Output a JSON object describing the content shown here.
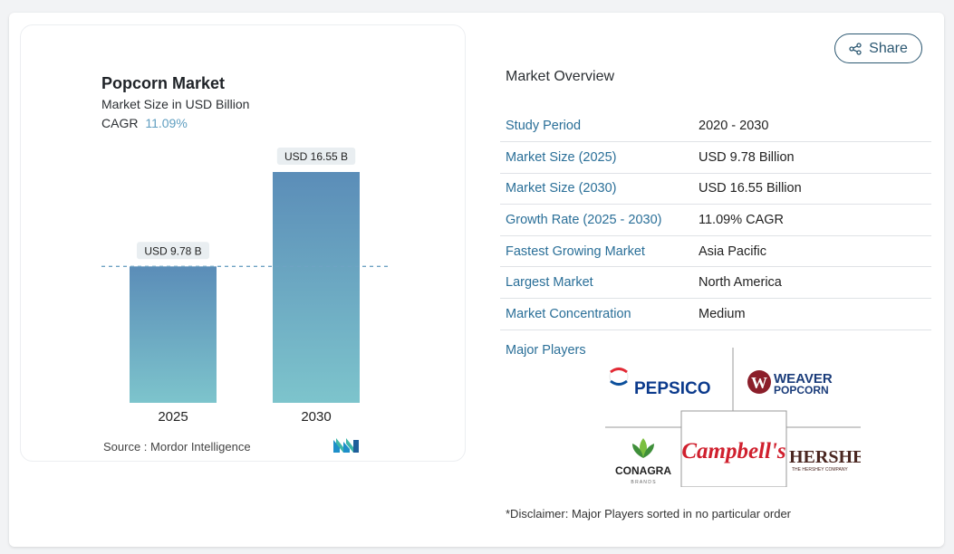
{
  "share": {
    "label": "Share",
    "icon": "share-icon"
  },
  "chart": {
    "title": "Popcorn Market",
    "subtitle": "Market Size in USD Billion",
    "cagr_label": "CAGR",
    "cagr_value": "11.09%",
    "source": "Source :  Mordor Intelligence",
    "logo": "MN"
  },
  "chart_data": {
    "type": "bar",
    "categories": [
      "2025",
      "2030"
    ],
    "values": [
      9.78,
      16.55
    ],
    "data_labels": [
      "USD 9.78 B",
      "USD 16.55 B"
    ],
    "title": "Popcorn Market",
    "subtitle": "Market Size in USD Billion",
    "xlabel": "",
    "ylabel": "",
    "ylim": [
      0,
      16.55
    ],
    "reference_line": 9.78,
    "colors": {
      "bar_top": "#5b8db8",
      "bar_bottom": "#7dc4cc",
      "ref_line": "#6fa3c4"
    }
  },
  "overview": {
    "title": "Market Overview",
    "rows": [
      {
        "key": "Study Period",
        "value": "2020 - 2030"
      },
      {
        "key": "Market Size (2025)",
        "value": "USD 9.78 Billion"
      },
      {
        "key": "Market Size (2030)",
        "value": "USD 16.55 Billion"
      },
      {
        "key": "Growth Rate (2025 - 2030)",
        "value": "11.09% CAGR"
      },
      {
        "key": "Fastest Growing Market",
        "value": "Asia Pacific"
      },
      {
        "key": "Largest Market",
        "value": "North America"
      },
      {
        "key": "Market Concentration",
        "value": "Medium"
      }
    ]
  },
  "players": {
    "label": "Major Players",
    "logos": [
      "PEPSICO",
      "WEAVER",
      "POPCORN",
      "CONAGRA",
      "B R A N D S",
      "Campbell's",
      "HERSHEY",
      "THE HERSHEY COMPANY"
    ]
  },
  "disclaimer": "*Disclaimer: Major Players sorted in no particular order",
  "colors": {
    "accent": "#2a6f98",
    "cagr": "#5f9ec0"
  }
}
